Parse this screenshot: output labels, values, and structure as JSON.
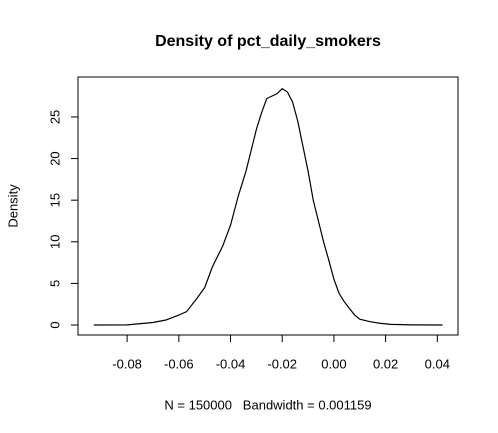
{
  "chart_data": {
    "type": "line",
    "title": "Density of pct_daily_smokers",
    "x_label": "N = 150000   Bandwidth = 0.001159",
    "y_label": "Density",
    "x": [
      -0.0929,
      -0.08,
      -0.07,
      -0.065,
      -0.06,
      -0.057,
      -0.053,
      -0.05,
      -0.047,
      -0.043,
      -0.04,
      -0.037,
      -0.034,
      -0.032,
      -0.03,
      -0.028,
      -0.026,
      -0.024,
      -0.022,
      -0.02,
      -0.018,
      -0.016,
      -0.014,
      -0.012,
      -0.01,
      -0.008,
      -0.006,
      -0.004,
      -0.002,
      0,
      0.002,
      0.004,
      0.006,
      0.008,
      0.01,
      0.014,
      0.018,
      0.022,
      0.03,
      0.042
    ],
    "values": [
      0,
      0.02,
      0.3,
      0.6,
      1.2,
      1.6,
      3.2,
      4.5,
      7,
      9.5,
      12,
      15.5,
      18.5,
      21,
      23.5,
      25.5,
      27.2,
      27.5,
      27.8,
      28.4,
      28,
      26.8,
      24.5,
      21.5,
      18.5,
      15,
      12.5,
      10,
      7.8,
      5.5,
      3.8,
      2.8,
      2,
      1.2,
      0.7,
      0.4,
      0.2,
      0.08,
      0.02,
      0
    ],
    "color": "#000000",
    "xlim": [
      -0.099,
      0.048
    ],
    "ylim": [
      -1.2,
      29.8
    ],
    "xticks": [
      -0.08,
      -0.06,
      -0.04,
      -0.02,
      {
        "value": 0,
        "label": "0.00"
      },
      0.02,
      0.04
    ],
    "yticks": [
      0,
      5,
      10,
      15,
      20,
      25
    ]
  }
}
